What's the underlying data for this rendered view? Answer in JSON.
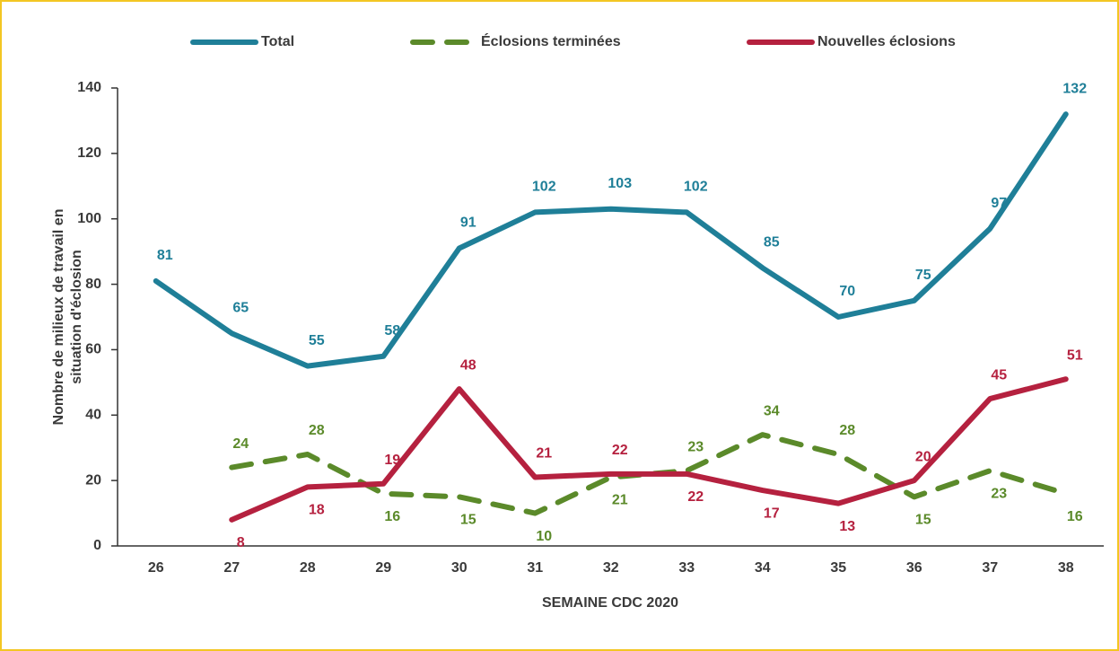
{
  "chart_data": {
    "type": "line",
    "categories": [
      "26",
      "27",
      "28",
      "29",
      "30",
      "31",
      "32",
      "33",
      "34",
      "35",
      "36",
      "37",
      "38"
    ],
    "series": [
      {
        "name": "Total",
        "color": "#1f7f98",
        "dash": false,
        "values": [
          81,
          65,
          55,
          58,
          91,
          102,
          103,
          102,
          85,
          70,
          75,
          97,
          132
        ]
      },
      {
        "name": "Éclosions terminées",
        "color": "#5b8a2a",
        "dash": true,
        "values": [
          null,
          24,
          28,
          16,
          15,
          10,
          21,
          23,
          34,
          28,
          15,
          23,
          16
        ]
      },
      {
        "name": "Nouvelles éclosions",
        "color": "#b5213f",
        "dash": false,
        "values": [
          null,
          8,
          18,
          19,
          48,
          21,
          22,
          22,
          17,
          13,
          20,
          45,
          51
        ]
      }
    ],
    "xlabel": "SEMAINE CDC 2020",
    "ylabel": [
      "Nombre de milieux de travail en",
      "situation d'éclosion"
    ],
    "ylim": [
      0,
      140
    ],
    "yticks": [
      0,
      20,
      40,
      60,
      80,
      100,
      120,
      140
    ],
    "legend": "top"
  }
}
